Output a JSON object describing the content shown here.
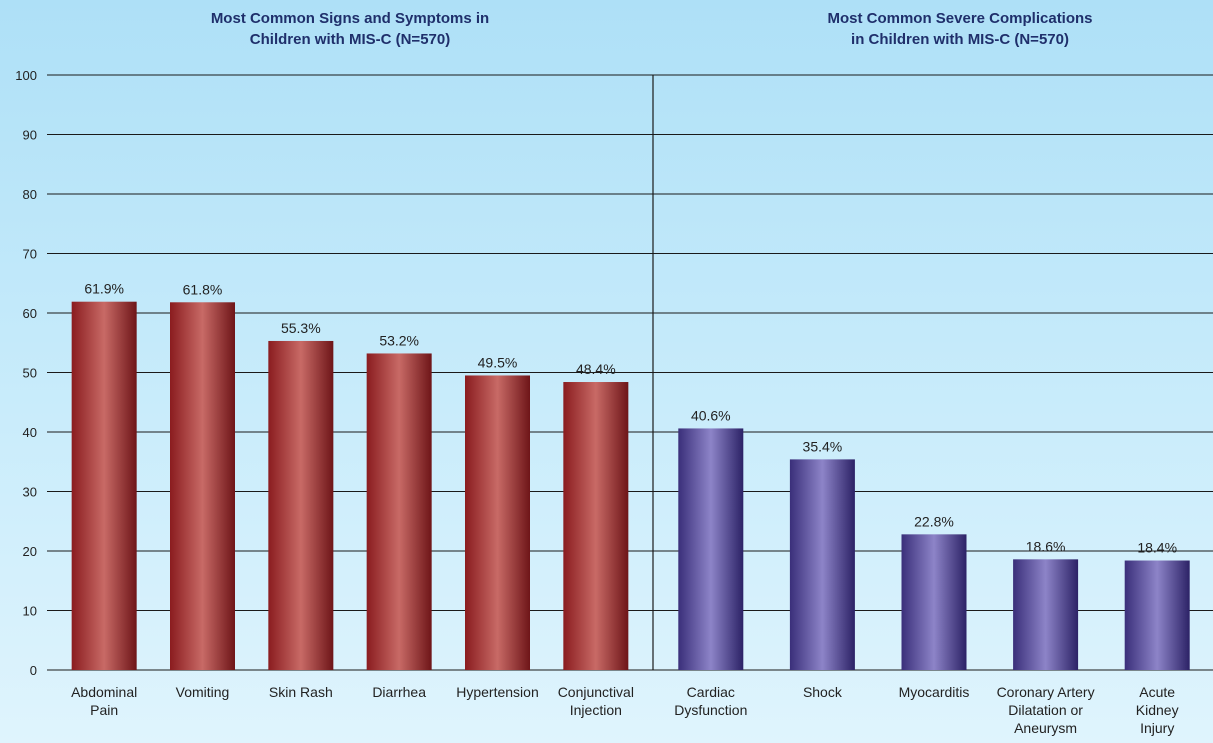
{
  "chart_data": [
    {
      "type": "bar",
      "title_lines": [
        "Most Common Signs and Symptoms in",
        "Children with MIS-C (N=570)"
      ],
      "categories": [
        [
          "Abdominal",
          "Pain"
        ],
        [
          "Vomiting"
        ],
        [
          "Skin Rash"
        ],
        [
          "Diarrhea"
        ],
        [
          "Hypertension"
        ],
        [
          "Conjunctival",
          "Injection"
        ]
      ],
      "values": [
        61.9,
        61.8,
        55.3,
        53.2,
        49.5,
        48.4
      ],
      "value_labels": [
        "61.9%",
        "61.8%",
        "55.3%",
        "53.2%",
        "49.5%",
        "48.4%"
      ],
      "ylim": [
        0,
        100
      ],
      "yticks": [
        "0",
        "10",
        "20",
        "30",
        "40",
        "50",
        "60",
        "70",
        "80",
        "90",
        "100"
      ],
      "grid": true,
      "color": "#9e2a2b"
    },
    {
      "type": "bar",
      "title_lines": [
        "Most Common Severe Complications",
        "in Children with MIS-C (N=570)"
      ],
      "categories": [
        [
          "Cardiac",
          "Dysfunction"
        ],
        [
          "Shock"
        ],
        [
          "Myocarditis"
        ],
        [
          "Coronary Artery",
          "Dilatation or",
          "Aneurysm"
        ],
        [
          "Acute",
          "Kidney",
          "Injury"
        ]
      ],
      "values": [
        40.6,
        35.4,
        22.8,
        18.6,
        18.4
      ],
      "value_labels": [
        "40.6%",
        "35.4%",
        "22.8%",
        "18.6%",
        "18.4%"
      ],
      "ylim": [
        0,
        100
      ],
      "grid": true,
      "color": "#4a3d8f"
    }
  ]
}
